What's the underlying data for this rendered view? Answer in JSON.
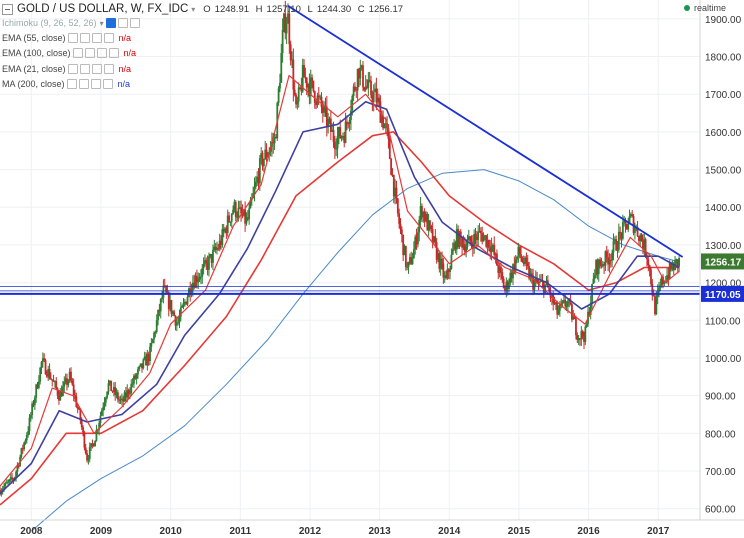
{
  "header": {
    "title": "GOLD / US DOLLAR, W, FX_IDC",
    "ohlc": {
      "o_label": "O",
      "o": "1248.91",
      "h_label": "H",
      "h": "1257.10",
      "l_label": "L",
      "l": "1244.30",
      "c_label": "C",
      "c": "1256.17"
    },
    "realtime": "realtime"
  },
  "indicators": [
    {
      "label": "Ichimoku (9, 26, 52, 26)",
      "value": "",
      "faded": true
    },
    {
      "label": "EMA (55, close)",
      "value": "n/a",
      "color": "#d00000"
    },
    {
      "label": "EMA (100, close)",
      "value": "n/a",
      "color": "#d00000"
    },
    {
      "label": "EMA (21, close)",
      "value": "n/a",
      "color": "#d00000"
    },
    {
      "label": "MA (200, close)",
      "value": "n/a",
      "color": "#1e3ad9"
    }
  ],
  "colors": {
    "bull": "#2e7d32",
    "bear": "#c62828",
    "ema21": "#e53935",
    "ema55": "#3f3fa0",
    "ma200": "#4a89c8",
    "trendline": "#1a2fd6",
    "support": "#1a2fd6",
    "price_tag_current": "#3c7a32",
    "price_tag_support": "#1a2fd6"
  },
  "chart_data": {
    "type": "candlestick",
    "x_axis_labels": [
      "2008",
      "2009",
      "2010",
      "2011",
      "2012",
      "2013",
      "2014",
      "2015",
      "2016",
      "2017"
    ],
    "y_axis_labels": [
      "1900.00",
      "1800.00",
      "1700.00",
      "1600.00",
      "1500.00",
      "1400.00",
      "1300.00",
      "1200.00",
      "1100.00",
      "1000.00",
      "900.00",
      "800.00",
      "700.00",
      "600.00"
    ],
    "ylim": [
      570,
      1950
    ],
    "xlim": [
      2007.55,
      2017.6
    ],
    "last_price_label": "1256.17",
    "support_price_label": "1170.05",
    "support_level": 1170.05,
    "extra_support_levels": [
      1190,
      1178
    ],
    "trendline": {
      "start": {
        "x": 2011.68,
        "y": 1935
      },
      "end": {
        "x": 2017.35,
        "y": 1268
      }
    },
    "price_path": [
      [
        2007.55,
        650
      ],
      [
        2007.75,
        680
      ],
      [
        2007.95,
        810
      ],
      [
        2008.15,
        990
      ],
      [
        2008.25,
        960
      ],
      [
        2008.4,
        900
      ],
      [
        2008.55,
        950
      ],
      [
        2008.7,
        840
      ],
      [
        2008.8,
        735
      ],
      [
        2008.9,
        780
      ],
      [
        2009.1,
        930
      ],
      [
        2009.3,
        880
      ],
      [
        2009.5,
        950
      ],
      [
        2009.7,
        1010
      ],
      [
        2009.9,
        1180
      ],
      [
        2010.1,
        1090
      ],
      [
        2010.3,
        1200
      ],
      [
        2010.5,
        1240
      ],
      [
        2010.7,
        1300
      ],
      [
        2010.9,
        1400
      ],
      [
        2011.1,
        1360
      ],
      [
        2011.3,
        1520
      ],
      [
        2011.5,
        1580
      ],
      [
        2011.62,
        1880
      ],
      [
        2011.68,
        1910
      ],
      [
        2011.8,
        1650
      ],
      [
        2011.9,
        1750
      ],
      [
        2012.05,
        1710
      ],
      [
        2012.2,
        1650
      ],
      [
        2012.35,
        1580
      ],
      [
        2012.5,
        1600
      ],
      [
        2012.7,
        1770
      ],
      [
        2012.8,
        1720
      ],
      [
        2012.95,
        1690
      ],
      [
        2013.1,
        1600
      ],
      [
        2013.25,
        1390
      ],
      [
        2013.4,
        1230
      ],
      [
        2013.5,
        1290
      ],
      [
        2013.6,
        1400
      ],
      [
        2013.75,
        1320
      ],
      [
        2013.95,
        1200
      ],
      [
        2014.1,
        1320
      ],
      [
        2014.25,
        1300
      ],
      [
        2014.45,
        1330
      ],
      [
        2014.6,
        1300
      ],
      [
        2014.8,
        1180
      ],
      [
        2015.0,
        1280
      ],
      [
        2015.2,
        1200
      ],
      [
        2015.4,
        1190
      ],
      [
        2015.55,
        1120
      ],
      [
        2015.7,
        1150
      ],
      [
        2015.85,
        1060
      ],
      [
        2015.95,
        1060
      ],
      [
        2016.1,
        1240
      ],
      [
        2016.3,
        1270
      ],
      [
        2016.5,
        1340
      ],
      [
        2016.6,
        1370
      ],
      [
        2016.75,
        1320
      ],
      [
        2016.85,
        1270
      ],
      [
        2016.95,
        1130
      ],
      [
        2017.05,
        1200
      ],
      [
        2017.2,
        1240
      ],
      [
        2017.3,
        1256
      ]
    ],
    "ema21_path": [
      [
        2007.55,
        660
      ],
      [
        2008.0,
        760
      ],
      [
        2008.3,
        920
      ],
      [
        2008.6,
        900
      ],
      [
        2008.9,
        800
      ],
      [
        2009.3,
        870
      ],
      [
        2009.7,
        960
      ],
      [
        2010.0,
        1090
      ],
      [
        2010.5,
        1180
      ],
      [
        2010.9,
        1350
      ],
      [
        2011.3,
        1460
      ],
      [
        2011.7,
        1750
      ],
      [
        2012.0,
        1700
      ],
      [
        2012.4,
        1640
      ],
      [
        2012.8,
        1700
      ],
      [
        2013.1,
        1630
      ],
      [
        2013.4,
        1390
      ],
      [
        2013.7,
        1320
      ],
      [
        2014.0,
        1250
      ],
      [
        2014.4,
        1300
      ],
      [
        2014.8,
        1240
      ],
      [
        2015.2,
        1210
      ],
      [
        2015.6,
        1140
      ],
      [
        2015.95,
        1090
      ],
      [
        2016.3,
        1220
      ],
      [
        2016.6,
        1320
      ],
      [
        2016.9,
        1270
      ],
      [
        2017.1,
        1200
      ],
      [
        2017.3,
        1230
      ]
    ],
    "ema55_path": [
      [
        2007.55,
        640
      ],
      [
        2008.0,
        720
      ],
      [
        2008.4,
        860
      ],
      [
        2008.8,
        830
      ],
      [
        2009.3,
        850
      ],
      [
        2009.8,
        930
      ],
      [
        2010.2,
        1060
      ],
      [
        2010.7,
        1170
      ],
      [
        2011.1,
        1290
      ],
      [
        2011.5,
        1440
      ],
      [
        2011.9,
        1600
      ],
      [
        2012.4,
        1620
      ],
      [
        2012.8,
        1680
      ],
      [
        2013.1,
        1660
      ],
      [
        2013.5,
        1480
      ],
      [
        2013.9,
        1360
      ],
      [
        2014.4,
        1290
      ],
      [
        2014.9,
        1240
      ],
      [
        2015.4,
        1200
      ],
      [
        2015.9,
        1130
      ],
      [
        2016.3,
        1170
      ],
      [
        2016.7,
        1270
      ],
      [
        2017.0,
        1270
      ],
      [
        2017.3,
        1240
      ]
    ],
    "ema100_path": [
      [
        2007.55,
        610
      ],
      [
        2008.0,
        680
      ],
      [
        2008.5,
        800
      ],
      [
        2009.0,
        800
      ],
      [
        2009.6,
        860
      ],
      [
        2010.2,
        980
      ],
      [
        2010.8,
        1110
      ],
      [
        2011.3,
        1260
      ],
      [
        2011.8,
        1430
      ],
      [
        2012.4,
        1520
      ],
      [
        2012.9,
        1590
      ],
      [
        2013.2,
        1600
      ],
      [
        2013.6,
        1520
      ],
      [
        2014.0,
        1430
      ],
      [
        2014.5,
        1360
      ],
      [
        2015.0,
        1300
      ],
      [
        2015.5,
        1250
      ],
      [
        2016.0,
        1180
      ],
      [
        2016.4,
        1200
      ],
      [
        2016.8,
        1240
      ],
      [
        2017.3,
        1240
      ]
    ],
    "ma200_path": [
      [
        2008.0,
        540
      ],
      [
        2008.5,
        620
      ],
      [
        2009.0,
        680
      ],
      [
        2009.6,
        740
      ],
      [
        2010.2,
        820
      ],
      [
        2010.8,
        930
      ],
      [
        2011.4,
        1050
      ],
      [
        2011.9,
        1170
      ],
      [
        2012.4,
        1280
      ],
      [
        2012.9,
        1380
      ],
      [
        2013.4,
        1450
      ],
      [
        2013.9,
        1490
      ],
      [
        2014.5,
        1500
      ],
      [
        2015.0,
        1470
      ],
      [
        2015.5,
        1420
      ],
      [
        2016.0,
        1350
      ],
      [
        2016.5,
        1300
      ],
      [
        2017.0,
        1270
      ],
      [
        2017.3,
        1255
      ]
    ]
  }
}
